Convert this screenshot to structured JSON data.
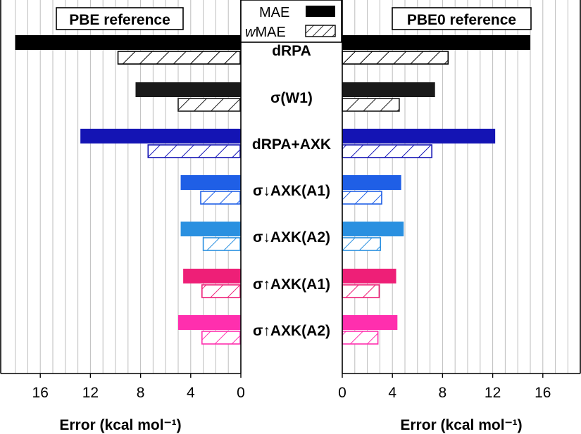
{
  "chart_data": {
    "type": "bar",
    "orientation": "horizontal",
    "xlabel": "Error (kcal mol⁻¹)",
    "legend": [
      {
        "name": "MAE",
        "style": "solid"
      },
      {
        "name": "wMAE",
        "style": "hatched"
      }
    ],
    "categories": [
      "dRPA",
      "σ(W1)",
      "dRPA+AXK",
      "σ↓AXK(A1)",
      "σ↓AXK(A2)",
      "σ↑AXK(A1)",
      "σ↑AXK(A2)"
    ],
    "colors": [
      "#000000",
      "#1a1a1a",
      "#1414b4",
      "#1f5fe6",
      "#2a90e0",
      "#ee1f77",
      "#ff2fae"
    ],
    "grid": true,
    "panels": [
      {
        "title": "PBE reference",
        "direction": "reversed",
        "xlim": [
          0,
          18.4
        ],
        "ticks": [
          0,
          4,
          8,
          12,
          16
        ],
        "tick_labels": [
          "0",
          "4",
          "8",
          "12",
          "16"
        ],
        "series": [
          {
            "name": "MAE",
            "values": [
              18.0,
              8.4,
              12.8,
              4.8,
              4.8,
              4.6,
              5.0
            ]
          },
          {
            "name": "wMAE",
            "values": [
              9.8,
              5.0,
              7.4,
              3.2,
              3.0,
              3.1,
              3.1
            ]
          }
        ]
      },
      {
        "title": "PBE0 reference",
        "direction": "normal",
        "xlim": [
          0,
          18.4
        ],
        "ticks": [
          0,
          4,
          8,
          12,
          16
        ],
        "tick_labels": [
          "0",
          "4",
          "8",
          "12",
          "16"
        ],
        "series": [
          {
            "name": "MAE",
            "values": [
              15.0,
              7.4,
              12.2,
              4.7,
              4.9,
              4.3,
              4.4
            ]
          },
          {
            "name": "wMAE",
            "values": [
              8.5,
              4.6,
              7.2,
              3.2,
              3.1,
              3.0,
              2.9
            ]
          }
        ]
      }
    ]
  }
}
